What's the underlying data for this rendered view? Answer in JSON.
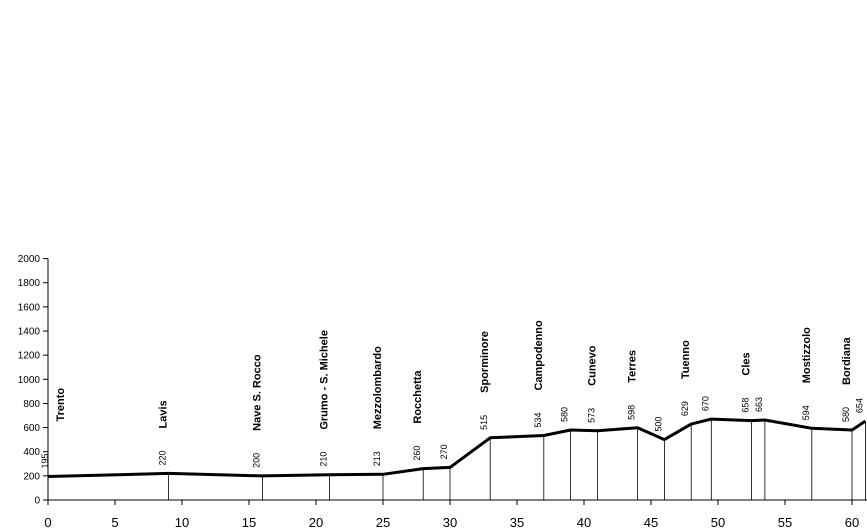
{
  "chart_data": {
    "type": "line",
    "title": "",
    "xlabel": "",
    "ylabel": "",
    "xlim": [
      0,
      61
    ],
    "ylim": [
      0,
      2000
    ],
    "x_ticks": [
      0,
      5,
      10,
      15,
      20,
      25,
      30,
      35,
      40,
      45,
      50,
      55,
      60
    ],
    "y_ticks": [
      0,
      200,
      400,
      600,
      800,
      1000,
      1200,
      1400,
      1600,
      1800,
      2000
    ],
    "grid": false,
    "line_color": "#000000",
    "points": [
      {
        "x": 0,
        "y": 195,
        "label": "195",
        "place": "Trento"
      },
      {
        "x": 9,
        "y": 220,
        "label": "220",
        "place": "Lavis"
      },
      {
        "x": 16,
        "y": 200,
        "label": "200",
        "place": "Nave S. Rocco"
      },
      {
        "x": 21,
        "y": 210,
        "label": "210",
        "place": "Grumo - S. Michele"
      },
      {
        "x": 25,
        "y": 213,
        "label": "213",
        "place": "Mezzolombardo"
      },
      {
        "x": 28,
        "y": 260,
        "label": "260",
        "place": "Rocchetta"
      },
      {
        "x": 30,
        "y": 270,
        "label": "270",
        "place": ""
      },
      {
        "x": 33,
        "y": 515,
        "label": "515",
        "place": "Sporminore"
      },
      {
        "x": 37,
        "y": 534,
        "label": "534",
        "place": "Campodenno"
      },
      {
        "x": 39,
        "y": 580,
        "label": "580",
        "place": ""
      },
      {
        "x": 41,
        "y": 573,
        "label": "573",
        "place": "Cunevo"
      },
      {
        "x": 44,
        "y": 598,
        "label": "598",
        "place": "Terres"
      },
      {
        "x": 46,
        "y": 500,
        "label": "500",
        "place": ""
      },
      {
        "x": 48,
        "y": 629,
        "label": "629",
        "place": "Tuenno"
      },
      {
        "x": 49.5,
        "y": 670,
        "label": "670",
        "place": ""
      },
      {
        "x": 52.5,
        "y": 658,
        "label": "658",
        "place": "Cles"
      },
      {
        "x": 53.5,
        "y": 663,
        "label": "663",
        "place": ""
      },
      {
        "x": 57,
        "y": 594,
        "label": "594",
        "place": "Mostizzolo"
      },
      {
        "x": 60,
        "y": 580,
        "label": "580",
        "place": "Bordiana"
      },
      {
        "x": 61,
        "y": 654,
        "label": "654",
        "place": ""
      }
    ]
  }
}
